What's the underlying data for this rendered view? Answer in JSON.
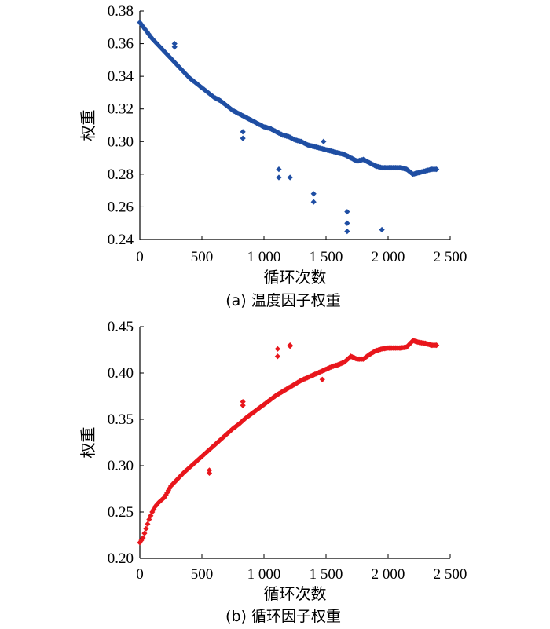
{
  "chart_data": [
    {
      "type": "scatter",
      "caption": "(a)  温度因子权重",
      "xlabel": "循环次数",
      "ylabel": "权重",
      "xlim": [
        0,
        2500
      ],
      "ylim": [
        0.24,
        0.38
      ],
      "xticks": [
        "0",
        "500",
        "1 000",
        "1 500",
        "2 000",
        "2 500"
      ],
      "yticks": [
        "0.24",
        "0.26",
        "0.28",
        "0.30",
        "0.32",
        "0.34",
        "0.36",
        "0.38"
      ],
      "color": "#1f4ea3",
      "marker": "diamond",
      "series": [
        {
          "main_curve": [
            [
              0,
              0.373
            ],
            [
              50,
              0.368
            ],
            [
              100,
              0.363
            ],
            [
              150,
              0.359
            ],
            [
              200,
              0.355
            ],
            [
              250,
              0.351
            ],
            [
              300,
              0.347
            ],
            [
              350,
              0.343
            ],
            [
              400,
              0.339
            ],
            [
              450,
              0.336
            ],
            [
              500,
              0.333
            ],
            [
              550,
              0.33
            ],
            [
              600,
              0.327
            ],
            [
              650,
              0.325
            ],
            [
              700,
              0.322
            ],
            [
              750,
              0.319
            ],
            [
              800,
              0.317
            ],
            [
              850,
              0.315
            ],
            [
              900,
              0.313
            ],
            [
              950,
              0.311
            ],
            [
              1000,
              0.309
            ],
            [
              1050,
              0.308
            ],
            [
              1100,
              0.306
            ],
            [
              1150,
              0.304
            ],
            [
              1200,
              0.303
            ],
            [
              1250,
              0.301
            ],
            [
              1300,
              0.3
            ],
            [
              1350,
              0.298
            ],
            [
              1400,
              0.297
            ],
            [
              1450,
              0.296
            ],
            [
              1500,
              0.295
            ],
            [
              1550,
              0.294
            ],
            [
              1600,
              0.293
            ],
            [
              1650,
              0.292
            ],
            [
              1700,
              0.29
            ],
            [
              1750,
              0.288
            ],
            [
              1800,
              0.289
            ],
            [
              1850,
              0.287
            ],
            [
              1900,
              0.285
            ],
            [
              1950,
              0.284
            ],
            [
              2000,
              0.284
            ],
            [
              2050,
              0.284
            ],
            [
              2100,
              0.284
            ],
            [
              2150,
              0.283
            ],
            [
              2200,
              0.28
            ],
            [
              2250,
              0.281
            ],
            [
              2300,
              0.282
            ],
            [
              2350,
              0.283
            ],
            [
              2390,
              0.283
            ]
          ],
          "outliers": [
            [
              280,
              0.36
            ],
            [
              280,
              0.358
            ],
            [
              830,
              0.306
            ],
            [
              830,
              0.302
            ],
            [
              1120,
              0.283
            ],
            [
              1120,
              0.278
            ],
            [
              1210,
              0.278
            ],
            [
              1400,
              0.268
            ],
            [
              1400,
              0.263
            ],
            [
              1670,
              0.257
            ],
            [
              1670,
              0.25
            ],
            [
              1670,
              0.245
            ],
            [
              1950,
              0.246
            ],
            [
              1480,
              0.3
            ]
          ]
        }
      ]
    },
    {
      "type": "scatter",
      "caption": "(b)  循环因子权重",
      "xlabel": "循环次数",
      "ylabel": "权重",
      "xlim": [
        0,
        2500
      ],
      "ylim": [
        0.2,
        0.45
      ],
      "xticks": [
        "0",
        "500",
        "1 000",
        "1 500",
        "2 000",
        "2 500"
      ],
      "yticks": [
        "0.20",
        "0.25",
        "0.30",
        "0.35",
        "0.40",
        "0.45"
      ],
      "color": "#e8161c",
      "marker": "diamond",
      "series": [
        {
          "main_curve": [
            [
              0,
              0.217
            ],
            [
              25,
              0.222
            ],
            [
              50,
              0.232
            ],
            [
              75,
              0.242
            ],
            [
              100,
              0.25
            ],
            [
              125,
              0.256
            ],
            [
              150,
              0.26
            ],
            [
              175,
              0.263
            ],
            [
              200,
              0.266
            ],
            [
              250,
              0.278
            ],
            [
              300,
              0.285
            ],
            [
              350,
              0.292
            ],
            [
              400,
              0.298
            ],
            [
              450,
              0.304
            ],
            [
              500,
              0.31
            ],
            [
              550,
              0.316
            ],
            [
              600,
              0.322
            ],
            [
              650,
              0.328
            ],
            [
              700,
              0.334
            ],
            [
              750,
              0.34
            ],
            [
              800,
              0.345
            ],
            [
              850,
              0.351
            ],
            [
              900,
              0.356
            ],
            [
              950,
              0.361
            ],
            [
              1000,
              0.366
            ],
            [
              1050,
              0.371
            ],
            [
              1100,
              0.376
            ],
            [
              1150,
              0.38
            ],
            [
              1200,
              0.384
            ],
            [
              1250,
              0.388
            ],
            [
              1300,
              0.392
            ],
            [
              1350,
              0.395
            ],
            [
              1400,
              0.398
            ],
            [
              1450,
              0.401
            ],
            [
              1500,
              0.404
            ],
            [
              1550,
              0.407
            ],
            [
              1600,
              0.409
            ],
            [
              1650,
              0.412
            ],
            [
              1700,
              0.418
            ],
            [
              1750,
              0.415
            ],
            [
              1800,
              0.415
            ],
            [
              1850,
              0.42
            ],
            [
              1900,
              0.424
            ],
            [
              1950,
              0.426
            ],
            [
              2000,
              0.427
            ],
            [
              2050,
              0.427
            ],
            [
              2100,
              0.427
            ],
            [
              2150,
              0.428
            ],
            [
              2200,
              0.435
            ],
            [
              2250,
              0.433
            ],
            [
              2300,
              0.432
            ],
            [
              2350,
              0.43
            ],
            [
              2390,
              0.43
            ]
          ],
          "outliers": [
            [
              560,
              0.295
            ],
            [
              560,
              0.292
            ],
            [
              830,
              0.369
            ],
            [
              830,
              0.365
            ],
            [
              1110,
              0.426
            ],
            [
              1110,
              0.418
            ],
            [
              1210,
              0.43
            ],
            [
              1210,
              0.429
            ],
            [
              1470,
              0.393
            ]
          ]
        }
      ]
    }
  ]
}
